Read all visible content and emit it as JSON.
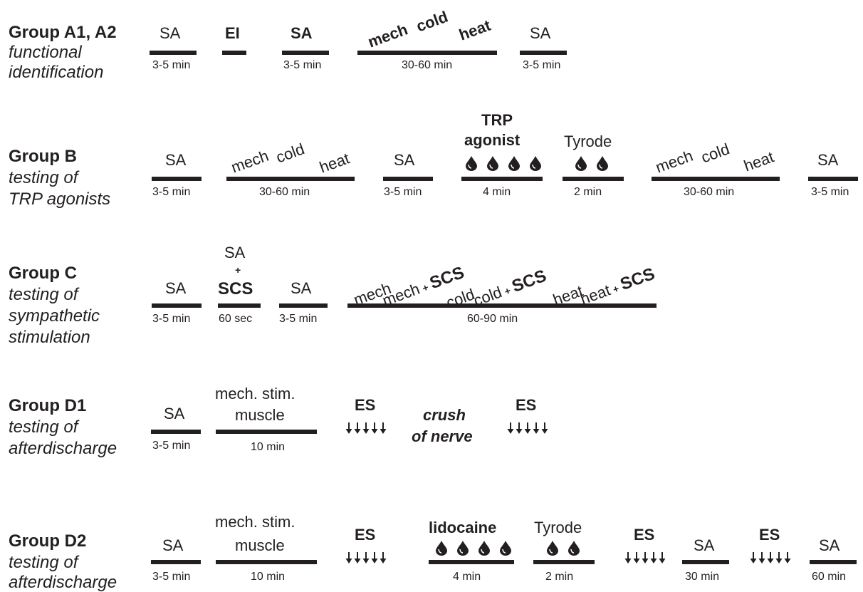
{
  "groups": [
    {
      "id": "A",
      "title": "Group A1, A2",
      "subtitle": [
        "functional",
        "identification"
      ],
      "items": [
        {
          "label": "SA",
          "duration": "3-5 min"
        },
        {
          "label": "EI",
          "bold": true
        },
        {
          "label": "SA",
          "bold": true,
          "duration": "3-5 min"
        },
        {
          "rotated_labels": [
            "mech",
            "cold",
            "heat"
          ],
          "bold": true,
          "duration": "30-60 min"
        },
        {
          "label": "SA",
          "duration": "3-5 min"
        }
      ]
    },
    {
      "id": "B",
      "title": "Group B",
      "subtitle": [
        "testing of",
        "TRP agonists"
      ],
      "items": [
        {
          "label": "SA",
          "duration": "3-5 min"
        },
        {
          "rotated_labels": [
            "mech",
            "cold",
            "heat"
          ],
          "duration": "30-60 min"
        },
        {
          "label": "SA",
          "duration": "3-5 min"
        },
        {
          "label_lines": [
            "TRP",
            "agonist"
          ],
          "bold": true,
          "drops": 4,
          "duration": "4 min"
        },
        {
          "label": "Tyrode",
          "drops": 2,
          "duration": "2 min"
        },
        {
          "rotated_labels": [
            "mech",
            "cold",
            "heat"
          ],
          "duration": "30-60 min"
        },
        {
          "label": "SA",
          "duration": "3-5 min"
        }
      ]
    },
    {
      "id": "C",
      "title": "Group C",
      "subtitle": [
        "testing of",
        "sympathetic",
        "stimulation"
      ],
      "items": [
        {
          "label": "SA",
          "duration": "3-5 min"
        },
        {
          "label_lines": [
            "SA",
            "+",
            "SCS"
          ],
          "duration": "60 sec"
        },
        {
          "label": "SA",
          "duration": "3-5 min"
        },
        {
          "rotated_labels": [
            "mech",
            "mech",
            "+",
            "SCS",
            "cold",
            "cold",
            "+",
            "SCS",
            "heat",
            "heat",
            "+",
            "SCS"
          ],
          "duration": "60-90 min"
        }
      ]
    },
    {
      "id": "D1",
      "title": "Group D1",
      "subtitle": [
        "testing of",
        "afterdischarge"
      ],
      "items": [
        {
          "label": "SA",
          "duration": "3-5 min"
        },
        {
          "label_lines": [
            "mech. stim.",
            "muscle"
          ],
          "duration": "10 min"
        },
        {
          "label": "ES",
          "bold": true,
          "arrows": 5
        },
        {
          "label_lines": [
            "crush",
            "of nerve"
          ],
          "bold": true,
          "italic": true
        },
        {
          "label": "ES",
          "bold": true,
          "arrows": 5
        }
      ]
    },
    {
      "id": "D2",
      "title": "Group D2",
      "subtitle": [
        "testing of",
        "afterdischarge"
      ],
      "items": [
        {
          "label": "SA",
          "duration": "3-5 min"
        },
        {
          "label_lines": [
            "mech. stim.",
            "muscle"
          ],
          "duration": "10 min"
        },
        {
          "label": "ES",
          "bold": true,
          "arrows": 5
        },
        {
          "label": "lidocaine",
          "bold": true,
          "drops": 4,
          "duration": "4 min"
        },
        {
          "label": "Tyrode",
          "drops": 2,
          "duration": "2 min"
        },
        {
          "label": "ES",
          "bold": true,
          "arrows": 5
        },
        {
          "label": "SA",
          "duration": "30 min"
        },
        {
          "label": "ES",
          "bold": true,
          "arrows": 5
        },
        {
          "label": "SA",
          "duration": "60 min"
        }
      ]
    }
  ],
  "colors": {
    "ink": "#231f20",
    "background": "#ffffff"
  },
  "icons": {
    "drop": "drop-icon",
    "arrow": "down-arrow-icon"
  }
}
